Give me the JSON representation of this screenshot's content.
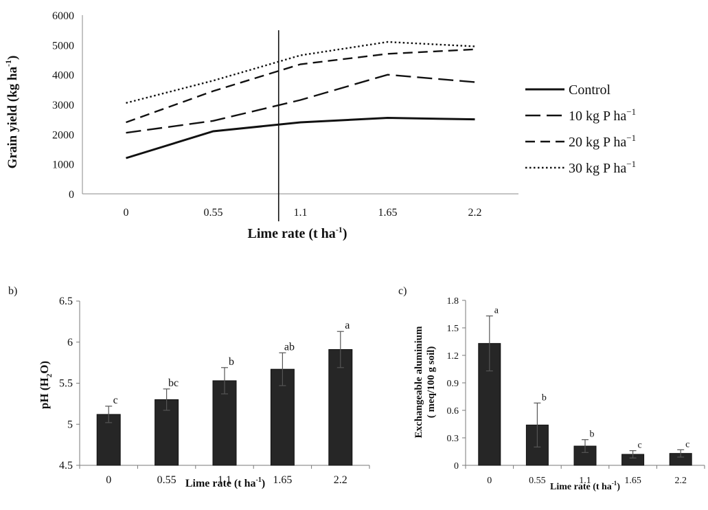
{
  "chart_data": [
    {
      "type": "line",
      "xlabel": "Lime rate (t ha",
      "xlabel_sup": "-1",
      "xlabel_end": ")",
      "ylabel": "Grain yield (kg ha",
      "ylabel_sup": "-1",
      "ylabel_end": ")",
      "categories": [
        "0",
        "0.55",
        "1.1",
        "1.65",
        "2.2"
      ],
      "ylim": [
        0,
        6000
      ],
      "yticks": [
        "0",
        "1000",
        "2000",
        "3000",
        "4000",
        "5000",
        "6000"
      ],
      "series": [
        {
          "name": "Control",
          "style": "solid",
          "values": [
            1200,
            2100,
            2400,
            2550,
            2500
          ]
        },
        {
          "name": "10 kg P ha",
          "sup": "−1",
          "style": "longdash",
          "values": [
            2050,
            2450,
            3150,
            4000,
            3750
          ]
        },
        {
          "name": "20 kg P ha",
          "sup": "−1",
          "style": "dash",
          "values": [
            2400,
            3450,
            4350,
            4700,
            4850
          ]
        },
        {
          "name": "30 kg P ha",
          "sup": "−1",
          "style": "dot",
          "values": [
            3050,
            3800,
            4650,
            5100,
            4950
          ]
        }
      ],
      "vertical_marker_x": 1.75,
      "legend": "right"
    },
    {
      "type": "bar",
      "panel_label": "b)",
      "xlabel": "Lime rate (t ha",
      "xlabel_sup": "-1",
      "xlabel_end": ")",
      "ylabel": "pH (H",
      "ylabel_sub": "2",
      "ylabel_end": "O)",
      "categories": [
        "0",
        "0.55",
        "1.1",
        "1.65",
        "2.2"
      ],
      "values": [
        5.12,
        5.3,
        5.53,
        5.67,
        5.91
      ],
      "errors": [
        0.1,
        0.13,
        0.16,
        0.2,
        0.22
      ],
      "letters": [
        "c",
        "bc",
        "b",
        "ab",
        "a"
      ],
      "ylim": [
        4.5,
        6.5
      ],
      "yticks": [
        "4.5",
        "5",
        "5.5",
        "6",
        "6.5"
      ]
    },
    {
      "type": "bar",
      "panel_label": "c)",
      "xlabel": "Lime rate (t ha",
      "xlabel_sup": "-1",
      "xlabel_end": ")",
      "ylabel_line1": "Exchangeable aluminium",
      "ylabel_line2": "( meq/100 g soil)",
      "categories": [
        "0",
        "0.55",
        "1.1",
        "1.65",
        "2.2"
      ],
      "values": [
        1.33,
        0.44,
        0.21,
        0.12,
        0.13
      ],
      "errors": [
        0.3,
        0.24,
        0.07,
        0.04,
        0.04
      ],
      "letters": [
        "a",
        "b",
        "b",
        "c",
        "c"
      ],
      "ylim": [
        0,
        1.8
      ],
      "yticks": [
        "0",
        "0.3",
        "0.6",
        "0.9",
        "1.2",
        "1.5",
        "1.8"
      ]
    }
  ]
}
